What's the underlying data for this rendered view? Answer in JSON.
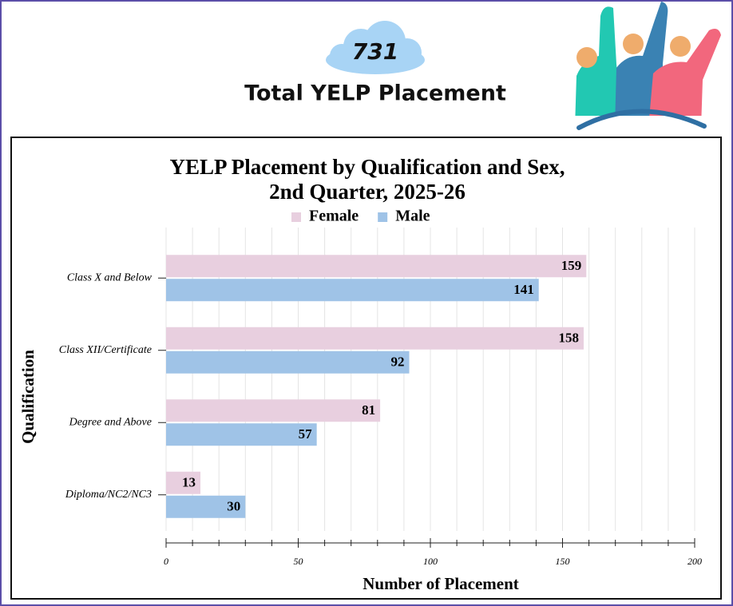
{
  "header": {
    "count": 731,
    "title": "Total YELP Placement"
  },
  "chart_data": {
    "type": "bar",
    "orientation": "horizontal",
    "title": [
      "YELP Placement by Qualification and Sex,",
      "2nd Quarter, 2025-26"
    ],
    "x_label": "Number of Placement",
    "y_label": "Qualification",
    "categories": [
      "Class X and Below",
      "Class XII/Certificate",
      "Degree and Above",
      "Diploma/NC2/NC3"
    ],
    "series": [
      {
        "name": "Female",
        "color": "#e8cfdf",
        "values": [
          159,
          158,
          81,
          13
        ]
      },
      {
        "name": "Male",
        "color": "#9fc3e7",
        "values": [
          141,
          92,
          57,
          30
        ]
      }
    ],
    "xlim": [
      0,
      200
    ],
    "xticks": [
      0,
      50,
      100,
      150,
      200
    ],
    "xminorticks": [
      10,
      20,
      30,
      40,
      60,
      70,
      80,
      90,
      110,
      120,
      130,
      140,
      160,
      170,
      180,
      190
    ],
    "grid": true,
    "legend": "top"
  }
}
